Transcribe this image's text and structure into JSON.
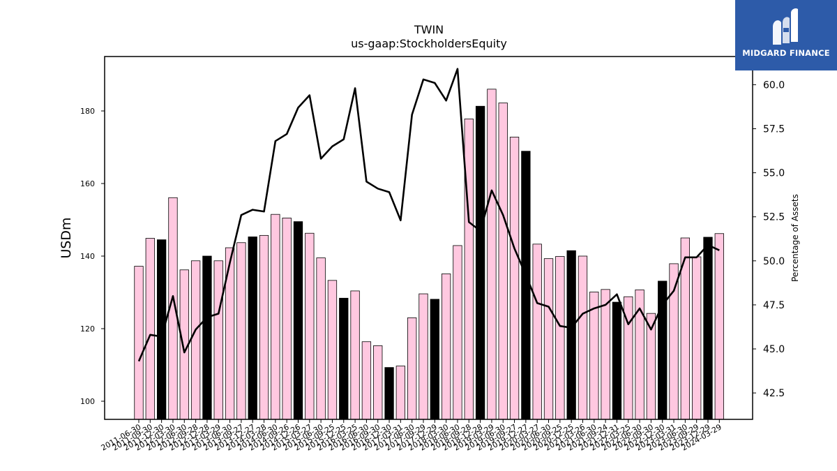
{
  "chart_data": {
    "type": "bar",
    "title": "TWIN",
    "subtitle": "us-gaap:StockholdersEquity",
    "ylabel": "USDm",
    "y2label": "Percentage of Assets",
    "ylim": [
      95,
      195
    ],
    "y2lim": [
      41.0,
      61.6
    ],
    "yticks": [
      100,
      120,
      140,
      160,
      180
    ],
    "y2ticks": [
      "42.5",
      "45.0",
      "47.5",
      "50.0",
      "52.5",
      "55.0",
      "57.5",
      "60.0"
    ],
    "grid": false,
    "colors": {
      "bar": "#ffc8e0",
      "bar_highlight": "#000000",
      "line": "#000000"
    },
    "categories": [
      "2011-06-30",
      "2011-09-30",
      "2011-12-30",
      "2012-03-30",
      "2012-06-30",
      "2012-09-28",
      "2012-12-28",
      "2013-03-29",
      "2013-06-30",
      "2013-09-27",
      "2013-12-27",
      "2014-03-28",
      "2014-06-30",
      "2014-09-26",
      "2014-12-26",
      "2015-03-27",
      "2015-06-30",
      "2015-09-25",
      "2015-12-25",
      "2016-03-25",
      "2016-06-30",
      "2016-09-30",
      "2016-12-30",
      "2017-03-31",
      "2017-06-30",
      "2017-09-29",
      "2017-12-29",
      "2018-03-30",
      "2018-06-30",
      "2018-09-28",
      "2018-12-28",
      "2019-03-29",
      "2019-06-30",
      "2019-09-27",
      "2019-12-27",
      "2020-03-27",
      "2020-06-30",
      "2020-09-25",
      "2020-12-25",
      "2021-03-26",
      "2021-06-30",
      "2021-09-24",
      "2021-12-31",
      "2022-03-25",
      "2022-06-30",
      "2022-09-30",
      "2022-12-30",
      "2023-03-31",
      "2023-06-30",
      "2023-09-29",
      "2023-12-29",
      "2024-03-29"
    ],
    "series": [
      {
        "type": "bar",
        "values": [
          137.2,
          144.9,
          144.5,
          156.1,
          136.2,
          138.7,
          140.0,
          138.7,
          142.3,
          143.7,
          145.3,
          145.7,
          151.5,
          150.5,
          149.5,
          146.3,
          139.5,
          133.3,
          128.4,
          130.4,
          116.4,
          115.3,
          109.3,
          109.7,
          123.0,
          129.6,
          128.1,
          135.1,
          142.9,
          177.8,
          181.3,
          186.0,
          182.2,
          172.8,
          168.9,
          143.3,
          139.3,
          139.9,
          141.5,
          140.0,
          130.1,
          130.8,
          127.3,
          128.8,
          130.7,
          124.2,
          133.1,
          137.9,
          145.0,
          139.8,
          145.2,
          146.2
        ],
        "highlight": [
          false,
          false,
          true,
          false,
          false,
          false,
          true,
          false,
          false,
          false,
          true,
          false,
          false,
          false,
          true,
          false,
          false,
          false,
          true,
          false,
          false,
          false,
          true,
          false,
          false,
          false,
          true,
          false,
          false,
          false,
          true,
          false,
          false,
          false,
          true,
          false,
          false,
          false,
          true,
          false,
          false,
          false,
          true,
          false,
          false,
          false,
          true,
          false,
          false,
          false,
          true,
          false
        ]
      },
      {
        "type": "line",
        "axis": "right",
        "values": [
          44.3,
          45.8,
          45.7,
          48.0,
          44.8,
          46.1,
          46.8,
          47.0,
          49.9,
          52.6,
          52.9,
          52.8,
          56.8,
          57.2,
          58.7,
          59.4,
          55.8,
          56.5,
          56.9,
          59.8,
          54.5,
          54.1,
          53.9,
          52.3,
          58.3,
          60.3,
          60.1,
          59.1,
          60.9,
          52.2,
          51.7,
          54.0,
          52.6,
          50.7,
          49.2,
          47.6,
          47.4,
          46.3,
          46.2,
          47.0,
          47.3,
          47.5,
          48.1,
          46.4,
          47.3,
          46.1,
          47.5,
          48.3,
          50.2,
          50.2,
          50.9,
          50.6
        ]
      }
    ]
  }
}
